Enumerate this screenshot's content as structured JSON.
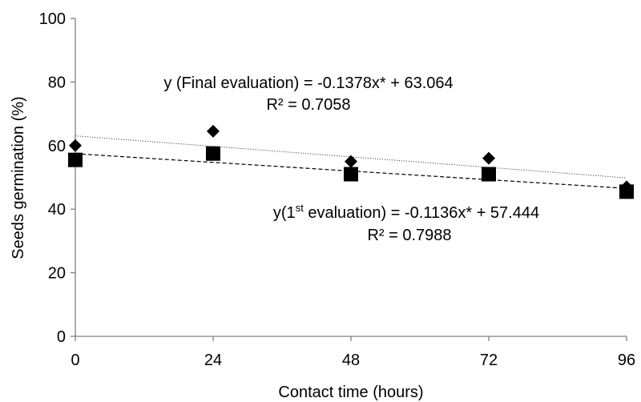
{
  "chart_data": {
    "type": "scatter",
    "title": "",
    "xlabel": "Contact time (hours)",
    "ylabel": "Seeds germination (%)",
    "xlim": [
      0,
      96
    ],
    "ylim": [
      0,
      100
    ],
    "xticks": [
      0,
      24,
      48,
      72,
      96
    ],
    "yticks": [
      0,
      20,
      40,
      60,
      80,
      100
    ],
    "grid": false,
    "legend": "none",
    "series": [
      {
        "key": "final",
        "marker": "diamond",
        "x": [
          0,
          24,
          48,
          72,
          96
        ],
        "y": [
          60,
          64.5,
          55,
          56,
          47
        ],
        "trendline": {
          "slope": -0.1378,
          "intercept": 63.064,
          "style": "dotted"
        },
        "equation": "y (Final evaluation) = -0.1378x* + 63.064",
        "r2": "R² = 0.7058"
      },
      {
        "key": "first",
        "marker": "square",
        "x": [
          0,
          24,
          48,
          72,
          96
        ],
        "y": [
          55.5,
          57.5,
          51,
          51,
          45.5
        ],
        "trendline": {
          "slope": -0.1136,
          "intercept": 57.444,
          "style": "dashed"
        },
        "equation_prefix": "y(1",
        "equation_sup": "st",
        "equation_suffix": " evaluation) = -0.1136x* + 57.444",
        "r2": "R² = 0.7988"
      }
    ],
    "colors": {
      "marker": "#000000",
      "axis": "#7f7f7f"
    }
  }
}
